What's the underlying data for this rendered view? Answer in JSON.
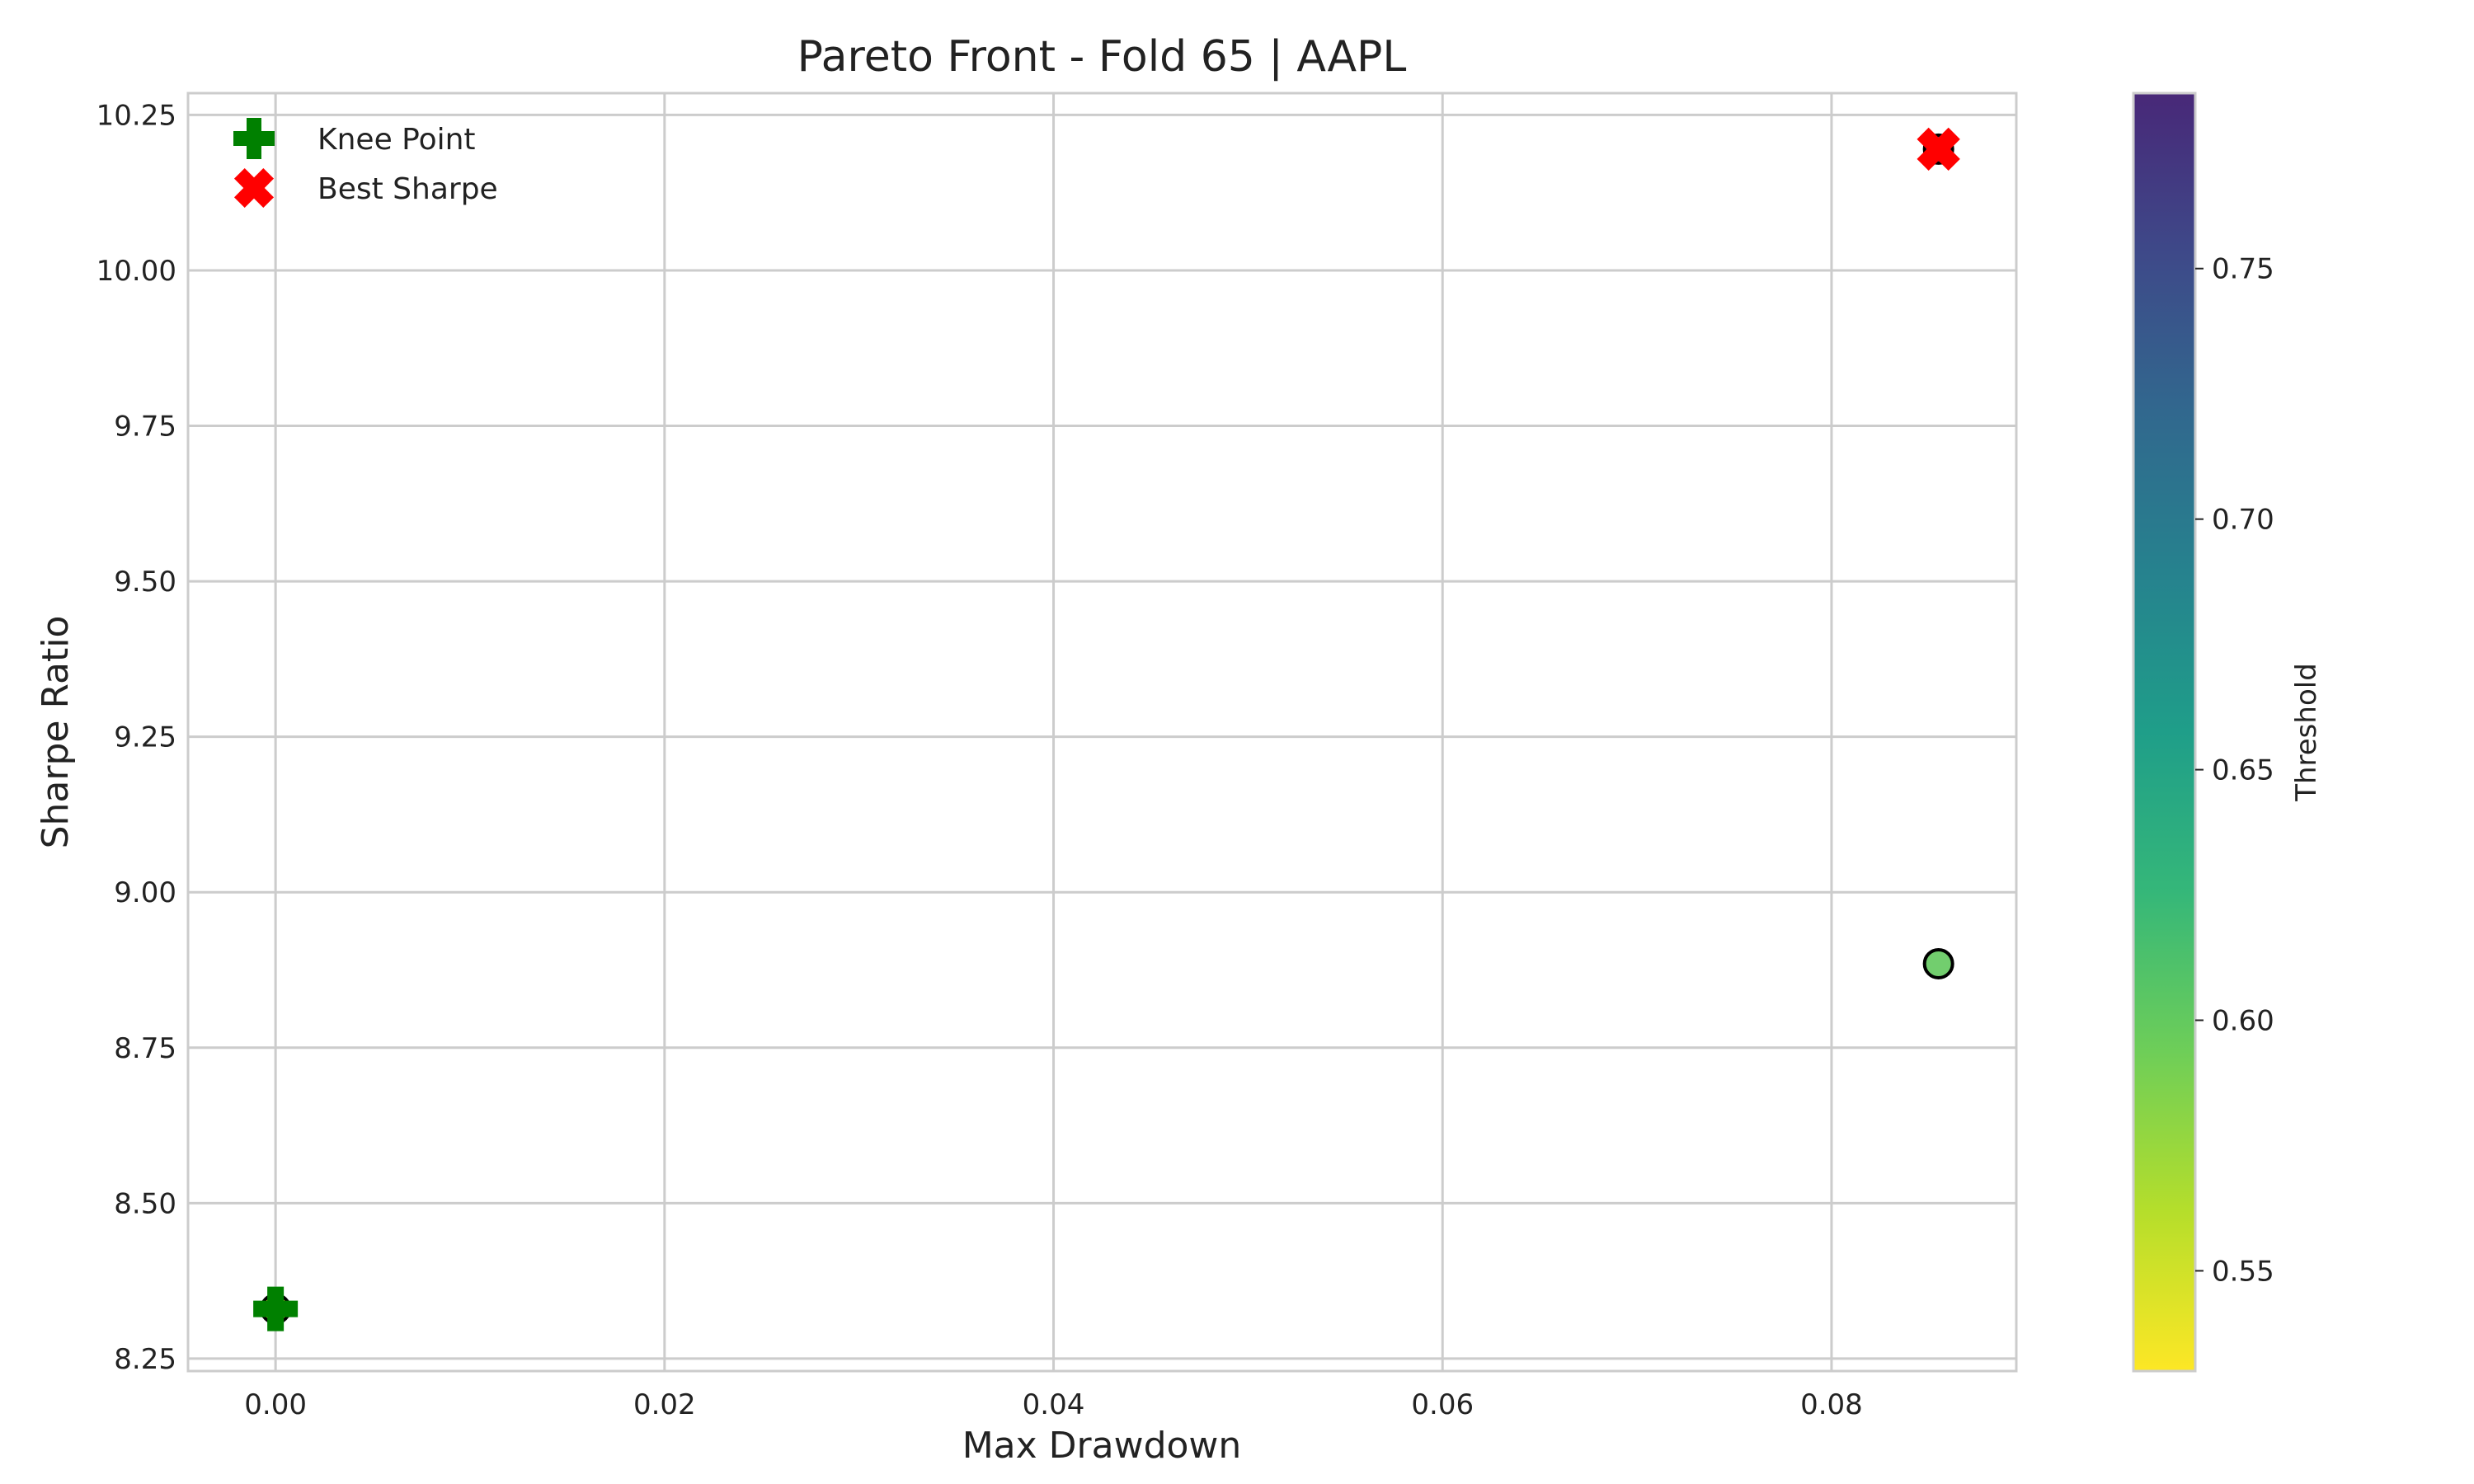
{
  "chart_data": {
    "type": "scatter",
    "title": "Pareto Front - Fold 65 | AAPL",
    "xlabel": "Max Drawdown",
    "ylabel": "Sharpe Ratio",
    "xlim": [
      -0.0045,
      0.0895
    ],
    "ylim": [
      8.23,
      10.285
    ],
    "xticks": [
      0.0,
      0.02,
      0.04,
      0.06,
      0.08
    ],
    "xtick_labels": [
      "0.00",
      "0.02",
      "0.04",
      "0.06",
      "0.08"
    ],
    "yticks": [
      8.25,
      8.5,
      8.75,
      9.0,
      9.25,
      9.5,
      9.75,
      10.0,
      10.25
    ],
    "ytick_labels": [
      "8.25",
      "8.50",
      "8.75",
      "9.00",
      "9.25",
      "9.50",
      "9.75",
      "10.00",
      "10.25"
    ],
    "grid": true,
    "points": [
      {
        "x": 0.0,
        "y": 8.33,
        "threshold": 0.53
      },
      {
        "x": 0.0855,
        "y": 8.885,
        "threshold": 0.6
      },
      {
        "x": 0.0855,
        "y": 10.195,
        "threshold": 0.785
      }
    ],
    "highlights": [
      {
        "name": "Knee Point",
        "marker": "plus",
        "color": "#008000",
        "x": 0.0,
        "y": 8.33
      },
      {
        "name": "Best Sharpe",
        "marker": "x",
        "color": "#ff0000",
        "x": 0.0855,
        "y": 10.195
      }
    ],
    "legend": {
      "placement": "top-left",
      "entries": [
        "Knee Point",
        "Best Sharpe"
      ]
    },
    "colorbar": {
      "label": "Threshold",
      "colormap": "viridis_r",
      "range": [
        0.53,
        0.785
      ],
      "ticks": [
        0.55,
        0.6,
        0.65,
        0.7,
        0.75
      ],
      "tick_labels": [
        "0.55",
        "0.60",
        "0.65",
        "0.70",
        "0.75"
      ]
    }
  }
}
